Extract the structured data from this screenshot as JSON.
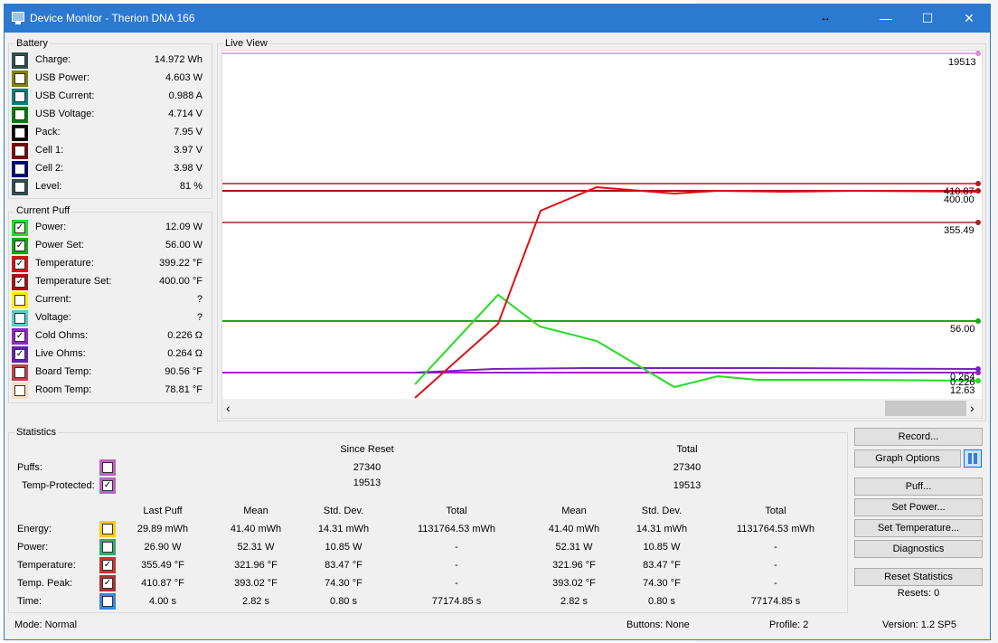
{
  "window": {
    "title": "Device Monitor - Therion DNA 166"
  },
  "battery": {
    "label": "Battery",
    "items": [
      {
        "label": "Charge:",
        "value": "14.972 Wh",
        "color": "#2f4f4f",
        "checked": false
      },
      {
        "label": "USB Power:",
        "value": "4.603 W",
        "color": "#808000",
        "checked": false
      },
      {
        "label": "USB Current:",
        "value": "0.988 A",
        "color": "#008080",
        "checked": false
      },
      {
        "label": "USB Voltage:",
        "value": "4.714 V",
        "color": "#008000",
        "checked": false
      },
      {
        "label": "Pack:",
        "value": "7.95 V",
        "color": "#000000",
        "checked": false
      },
      {
        "label": "Cell 1:",
        "value": "3.97 V",
        "color": "#800000",
        "checked": false
      },
      {
        "label": "Cell 2:",
        "value": "3.98 V",
        "color": "#000080",
        "checked": false
      },
      {
        "label": "Level:",
        "value": "81 %",
        "color": "#2f4f4f",
        "checked": false
      }
    ]
  },
  "current_puff": {
    "label": "Current Puff",
    "items": [
      {
        "label": "Power:",
        "value": "12.09 W",
        "color": "#22dd22",
        "checked": true
      },
      {
        "label": "Power Set:",
        "value": "56.00 W",
        "color": "#11aa11",
        "checked": true
      },
      {
        "label": "Temperature:",
        "value": "399.22 °F",
        "color": "#dd1111",
        "checked": true
      },
      {
        "label": "Temperature Set:",
        "value": "400.00 °F",
        "color": "#aa1111",
        "checked": true
      },
      {
        "label": "Current:",
        "value": "?",
        "color": "#ffee00",
        "checked": false
      },
      {
        "label": "Voltage:",
        "value": "?",
        "color": "#55cccc",
        "checked": false
      },
      {
        "label": "Cold Ohms:",
        "value": "0.226 Ω",
        "color": "#9922cc",
        "checked": true
      },
      {
        "label": "Live Ohms:",
        "value": "0.264 Ω",
        "color": "#6622aa",
        "checked": true
      },
      {
        "label": "Board Temp:",
        "value": "90.56 °F",
        "color": "#bb4444",
        "checked": false
      },
      {
        "label": "Room Temp:",
        "value": "78.81 °F",
        "color": "#f5ddc0",
        "checked": false
      }
    ]
  },
  "live_view": {
    "label": "Live View",
    "scroll_left": "‹",
    "scroll_right": "›",
    "end_labels": [
      "19513",
      "410.87",
      "400.00",
      "355.49",
      "56.00",
      "0.264",
      "0.226",
      "12.63"
    ]
  },
  "statistics": {
    "label": "Statistics",
    "since_reset": "Since Reset",
    "total": "Total",
    "puffs_label": "Puffs:",
    "puffs_since": "27340",
    "puffs_total": "27340",
    "puffs_color": "#c060c0",
    "temp_protected_label": "Temp-Protected:",
    "temp_protected_since": "19513",
    "temp_protected_total": "19513",
    "temp_protected_color": "#c060c0",
    "columns": [
      "Last Puff",
      "Mean",
      "Std. Dev.",
      "Total",
      "Mean",
      "Std. Dev.",
      "Total"
    ],
    "rows": [
      {
        "label": "Energy:",
        "color": "#ffcc00",
        "checked": false,
        "cells": [
          "29.89 mWh",
          "41.40 mWh",
          "14.31 mWh",
          "1131764.53 mWh",
          "41.40 mWh",
          "14.31 mWh",
          "1131764.53 mWh"
        ]
      },
      {
        "label": "Power:",
        "color": "#33aa66",
        "checked": false,
        "cells": [
          "26.90 W",
          "52.31 W",
          "10.85 W",
          "-",
          "52.31 W",
          "10.85 W",
          "-"
        ]
      },
      {
        "label": "Temperature:",
        "color": "#cc3333",
        "checked": true,
        "cells": [
          "355.49 °F",
          "321.96 °F",
          "83.47 °F",
          "-",
          "321.96 °F",
          "83.47 °F",
          "-"
        ]
      },
      {
        "label": "Temp. Peak:",
        "color": "#aa3333",
        "checked": true,
        "cells": [
          "410.87 °F",
          "393.02 °F",
          "74.30 °F",
          "-",
          "393.02 °F",
          "74.30 °F",
          "-"
        ]
      },
      {
        "label": "Time:",
        "color": "#3388dd",
        "checked": false,
        "cells": [
          "4.00 s",
          "2.82 s",
          "0.80 s",
          "77174.85 s",
          "2.82 s",
          "0.80 s",
          "77174.85 s"
        ]
      }
    ]
  },
  "buttons": {
    "record": "Record...",
    "graph_options": "Graph Options",
    "puff": "Puff...",
    "set_power": "Set Power...",
    "set_temperature": "Set Temperature...",
    "diagnostics": "Diagnostics",
    "reset_statistics": "Reset Statistics",
    "resets": "Resets: 0"
  },
  "status": {
    "mode": "Mode: Normal",
    "buttons": "Buttons: None",
    "profile": "Profile: 2",
    "version": "Version: 1.2 SP5"
  }
}
